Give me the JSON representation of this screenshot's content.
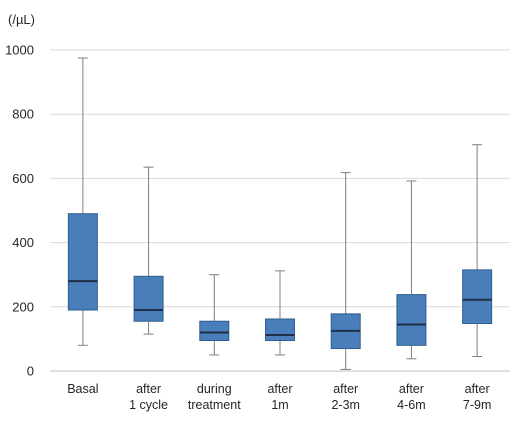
{
  "chart_data": {
    "type": "box",
    "unit_label": "(/µL)",
    "ylim": [
      0,
      1000
    ],
    "yticks": [
      0,
      200,
      400,
      600,
      800,
      1000
    ],
    "grid": true,
    "box_color": "#4a7ebb",
    "box_border_color": "#2e5f8f",
    "median_color": "#1f2f45",
    "whisker_color": "#7f7f7f",
    "categories": [
      {
        "lines": [
          "Basal"
        ],
        "min": 80,
        "q1": 190,
        "median": 280,
        "q3": 490,
        "max": 975
      },
      {
        "lines": [
          "after",
          "1 cycle"
        ],
        "min": 115,
        "q1": 155,
        "median": 190,
        "q3": 295,
        "max": 635
      },
      {
        "lines": [
          "during",
          "treatment"
        ],
        "min": 50,
        "q1": 95,
        "median": 120,
        "q3": 155,
        "max": 300
      },
      {
        "lines": [
          "after",
          "1m"
        ],
        "min": 50,
        "q1": 95,
        "median": 112,
        "q3": 162,
        "max": 312
      },
      {
        "lines": [
          "after",
          "2-3m"
        ],
        "min": 5,
        "q1": 70,
        "median": 125,
        "q3": 178,
        "max": 618
      },
      {
        "lines": [
          "after",
          "4-6m"
        ],
        "min": 38,
        "q1": 80,
        "median": 145,
        "q3": 238,
        "max": 592
      },
      {
        "lines": [
          "after",
          "7-9m"
        ],
        "min": 45,
        "q1": 148,
        "median": 222,
        "q3": 315,
        "max": 705
      }
    ]
  }
}
